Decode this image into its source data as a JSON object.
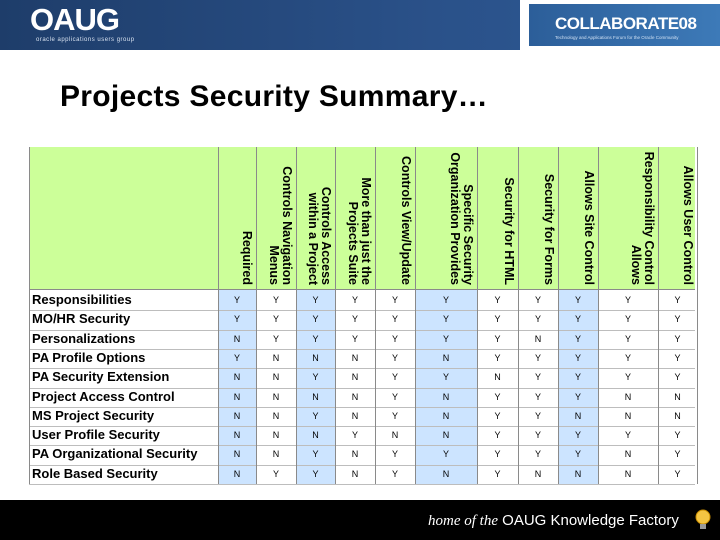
{
  "header": {
    "oaug_logo": "OAUG",
    "oaug_sub": "oracle applications users group",
    "collab_logo": "COLLABORATE08",
    "collab_sub": "Technology and Applications Forum for the Oracle Community"
  },
  "title": "Projects Security Summary…",
  "table": {
    "columns": [
      "Required",
      "Controls Navigation Menus",
      "Controls Access within a Project",
      "More than just the Projects Suite",
      "Controls View/Update",
      "Specific Security Organization Provides",
      "Security for HTML",
      "Security for Forms",
      "Allows Site Control",
      "Responsibility Control Allows",
      "Allows User Control"
    ],
    "rows": [
      {
        "label": "Responsibilities",
        "values": [
          "Y",
          "Y",
          "Y",
          "Y",
          "Y",
          "Y",
          "Y",
          "Y",
          "Y",
          "Y",
          "Y"
        ]
      },
      {
        "label": "MO/HR Security",
        "values": [
          "Y",
          "Y",
          "Y",
          "Y",
          "Y",
          "Y",
          "Y",
          "Y",
          "Y",
          "Y",
          "Y"
        ]
      },
      {
        "label": "Personalizations",
        "values": [
          "N",
          "Y",
          "Y",
          "Y",
          "Y",
          "Y",
          "Y",
          "N",
          "Y",
          "Y",
          "Y"
        ]
      },
      {
        "label": "PA Profile Options",
        "values": [
          "Y",
          "N",
          "N",
          "N",
          "Y",
          "N",
          "Y",
          "Y",
          "Y",
          "Y",
          "Y"
        ]
      },
      {
        "label": "PA Security Extension",
        "values": [
          "N",
          "N",
          "Y",
          "N",
          "Y",
          "Y",
          "N",
          "Y",
          "Y",
          "Y",
          "Y"
        ]
      },
      {
        "label": "Project Access Control",
        "values": [
          "N",
          "N",
          "N",
          "N",
          "Y",
          "N",
          "Y",
          "Y",
          "Y",
          "N",
          "N"
        ]
      },
      {
        "label": "MS Project Security",
        "values": [
          "N",
          "N",
          "Y",
          "N",
          "Y",
          "N",
          "Y",
          "Y",
          "N",
          "N",
          "N"
        ]
      },
      {
        "label": "User Profile Security",
        "values": [
          "N",
          "N",
          "N",
          "Y",
          "N",
          "N",
          "Y",
          "Y",
          "Y",
          "Y",
          "Y"
        ]
      },
      {
        "label": "PA Organizational Security",
        "values": [
          "N",
          "N",
          "Y",
          "N",
          "Y",
          "Y",
          "Y",
          "Y",
          "Y",
          "N",
          "Y"
        ]
      },
      {
        "label": "Role Based Security",
        "values": [
          "N",
          "Y",
          "Y",
          "N",
          "Y",
          "N",
          "Y",
          "N",
          "N",
          "N",
          "Y"
        ]
      }
    ]
  },
  "footer": {
    "prefix": "home of the",
    "brand": "OAUG Knowledge Factory"
  }
}
